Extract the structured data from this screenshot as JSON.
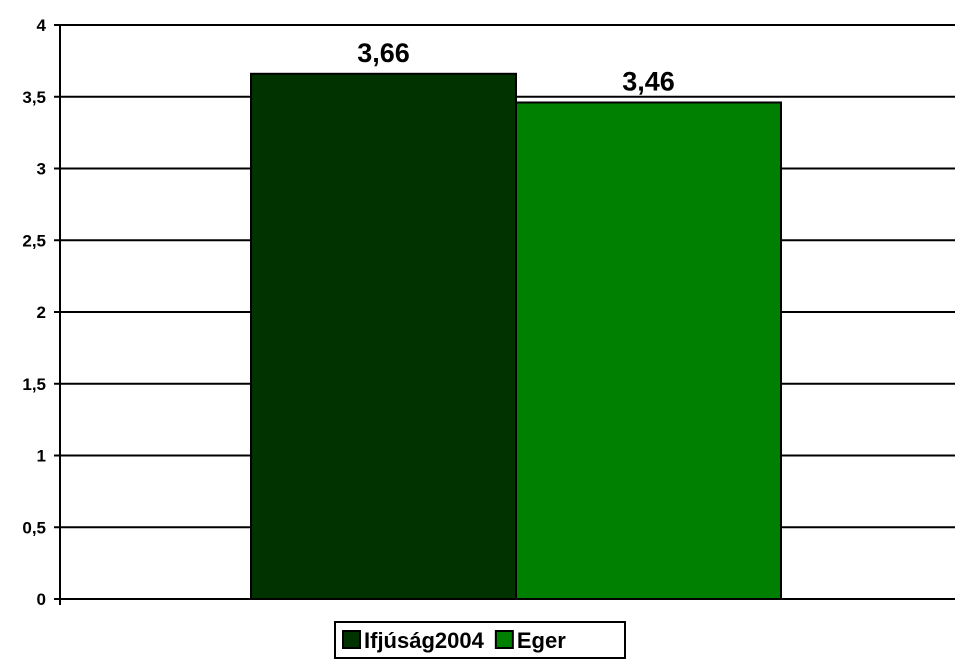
{
  "chart_data": {
    "type": "bar",
    "categories": [
      ""
    ],
    "series": [
      {
        "name": "Ifjúság2004",
        "values": [
          3.66
        ],
        "label": "3,66",
        "color": "#003300"
      },
      {
        "name": "Eger",
        "values": [
          3.46
        ],
        "label": "3,46",
        "color": "#008000"
      }
    ],
    "ylim": [
      0,
      4
    ],
    "yticks": [
      {
        "value": 0,
        "label": "0"
      },
      {
        "value": 0.5,
        "label": "0,5"
      },
      {
        "value": 1,
        "label": "1"
      },
      {
        "value": 1.5,
        "label": "1,5"
      },
      {
        "value": 2,
        "label": "2"
      },
      {
        "value": 2.5,
        "label": "2,5"
      },
      {
        "value": 3,
        "label": "3"
      },
      {
        "value": 3.5,
        "label": "3,5"
      },
      {
        "value": 4,
        "label": "4"
      }
    ],
    "grid": true,
    "legend": "bottom",
    "title": "",
    "xlabel": "",
    "ylabel": ""
  }
}
